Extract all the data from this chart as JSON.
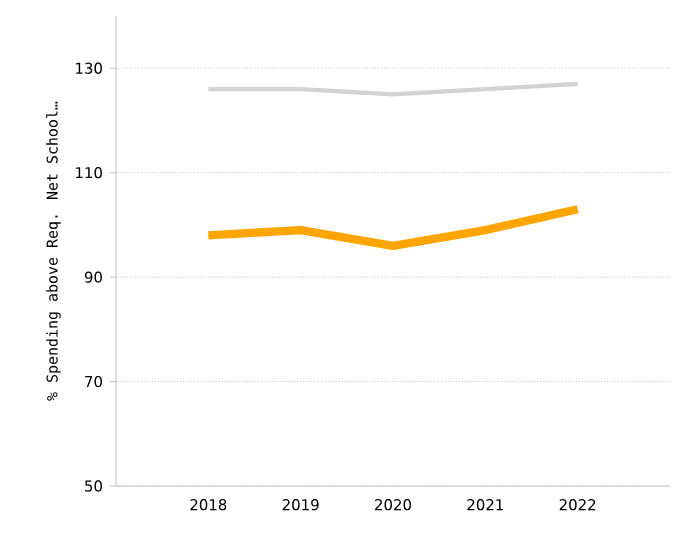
{
  "chart_data": {
    "type": "line",
    "ylabel": "% Spending above Req. Net School…",
    "categories": [
      "2018",
      "2019",
      "2020",
      "2021",
      "2022"
    ],
    "series": [
      {
        "color": "#d3d3d3",
        "values": [
          126,
          126,
          125,
          126,
          127
        ]
      },
      {
        "color": "#ffa500",
        "values": [
          98,
          99,
          96,
          99,
          103
        ]
      }
    ],
    "ylim": [
      50,
      140
    ],
    "yticks": [
      50,
      70,
      90,
      110,
      130
    ],
    "grid": "y",
    "marker": "none",
    "line_style": "solid"
  }
}
